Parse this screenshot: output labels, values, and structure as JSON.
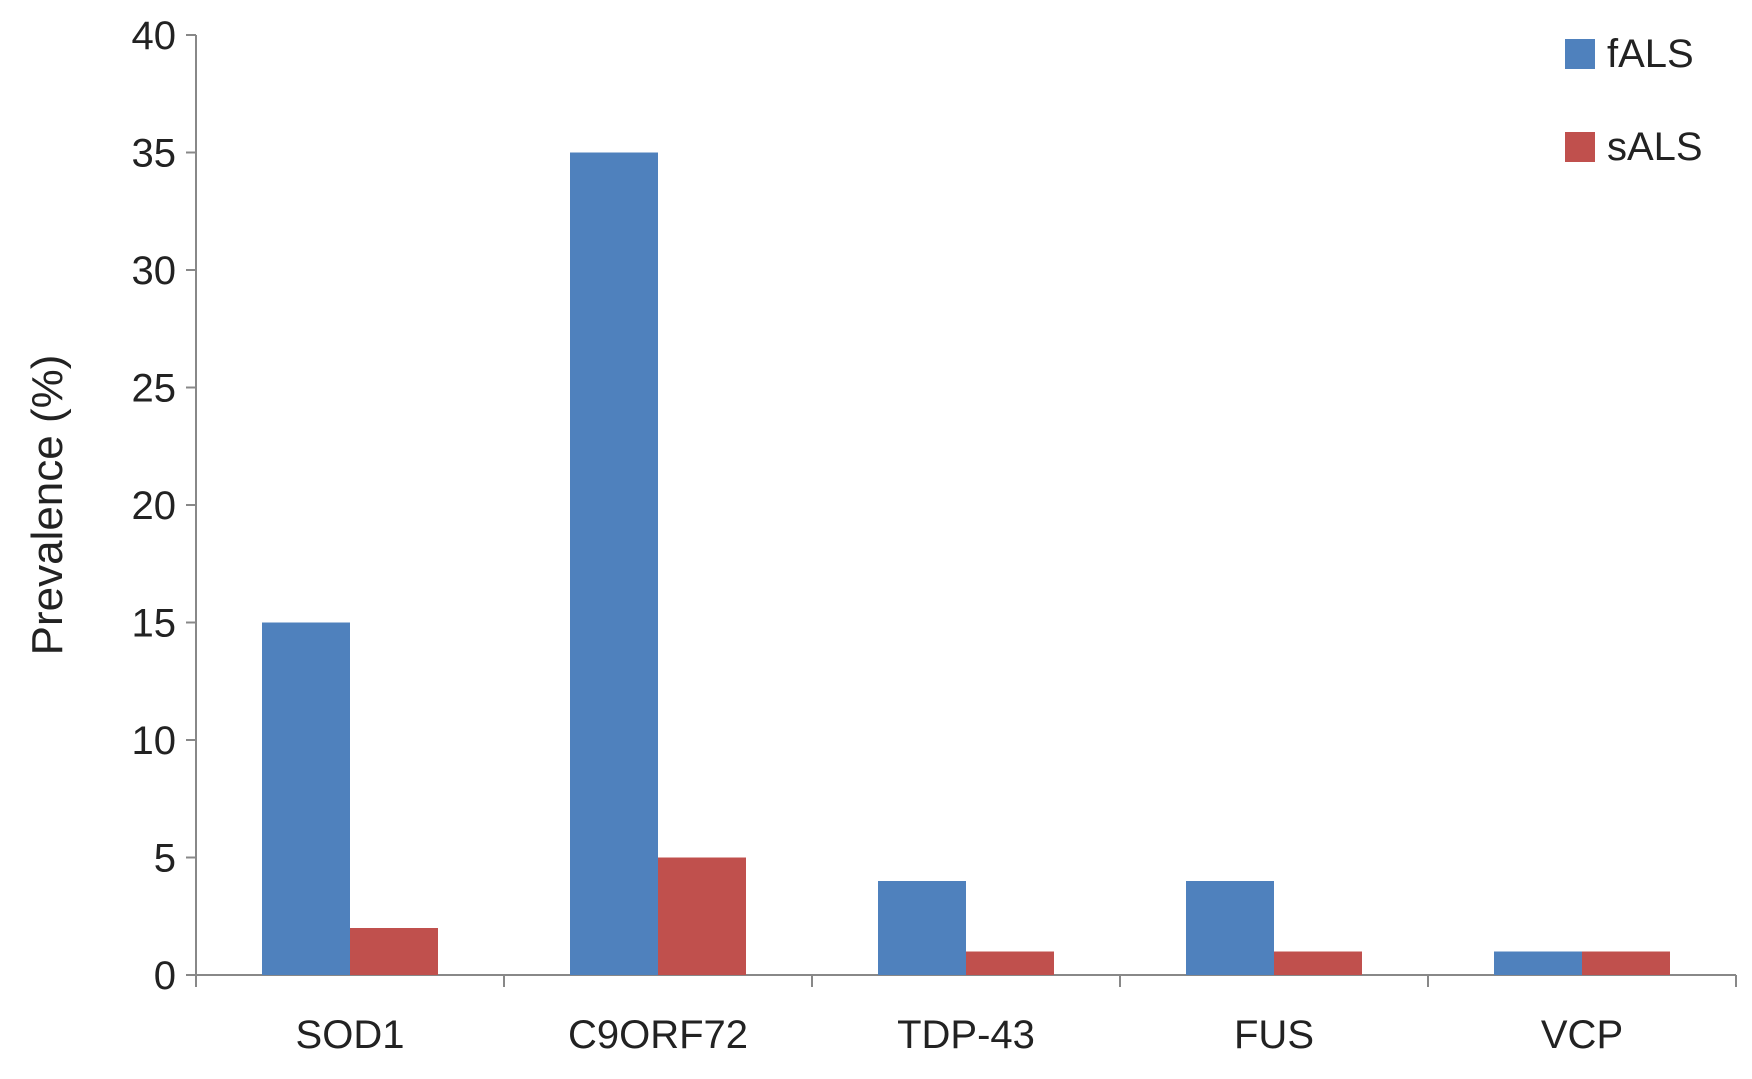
{
  "chart_data": {
    "type": "bar",
    "title": "",
    "xlabel": "",
    "ylabel": "Prevalence (%)",
    "ylim": [
      0,
      40
    ],
    "yticks": [
      0,
      5,
      10,
      15,
      20,
      25,
      30,
      35,
      40
    ],
    "grid": false,
    "legend_position": "top-right",
    "categories": [
      "SOD1",
      "C9ORF72",
      "TDP-43",
      "FUS",
      "VCP"
    ],
    "series": [
      {
        "name": "fALS",
        "color": "#4F81BD",
        "values": [
          15,
          35,
          4,
          4,
          1
        ]
      },
      {
        "name": "sALS",
        "color": "#C0504D",
        "values": [
          2,
          5,
          1,
          1,
          1
        ]
      }
    ]
  }
}
